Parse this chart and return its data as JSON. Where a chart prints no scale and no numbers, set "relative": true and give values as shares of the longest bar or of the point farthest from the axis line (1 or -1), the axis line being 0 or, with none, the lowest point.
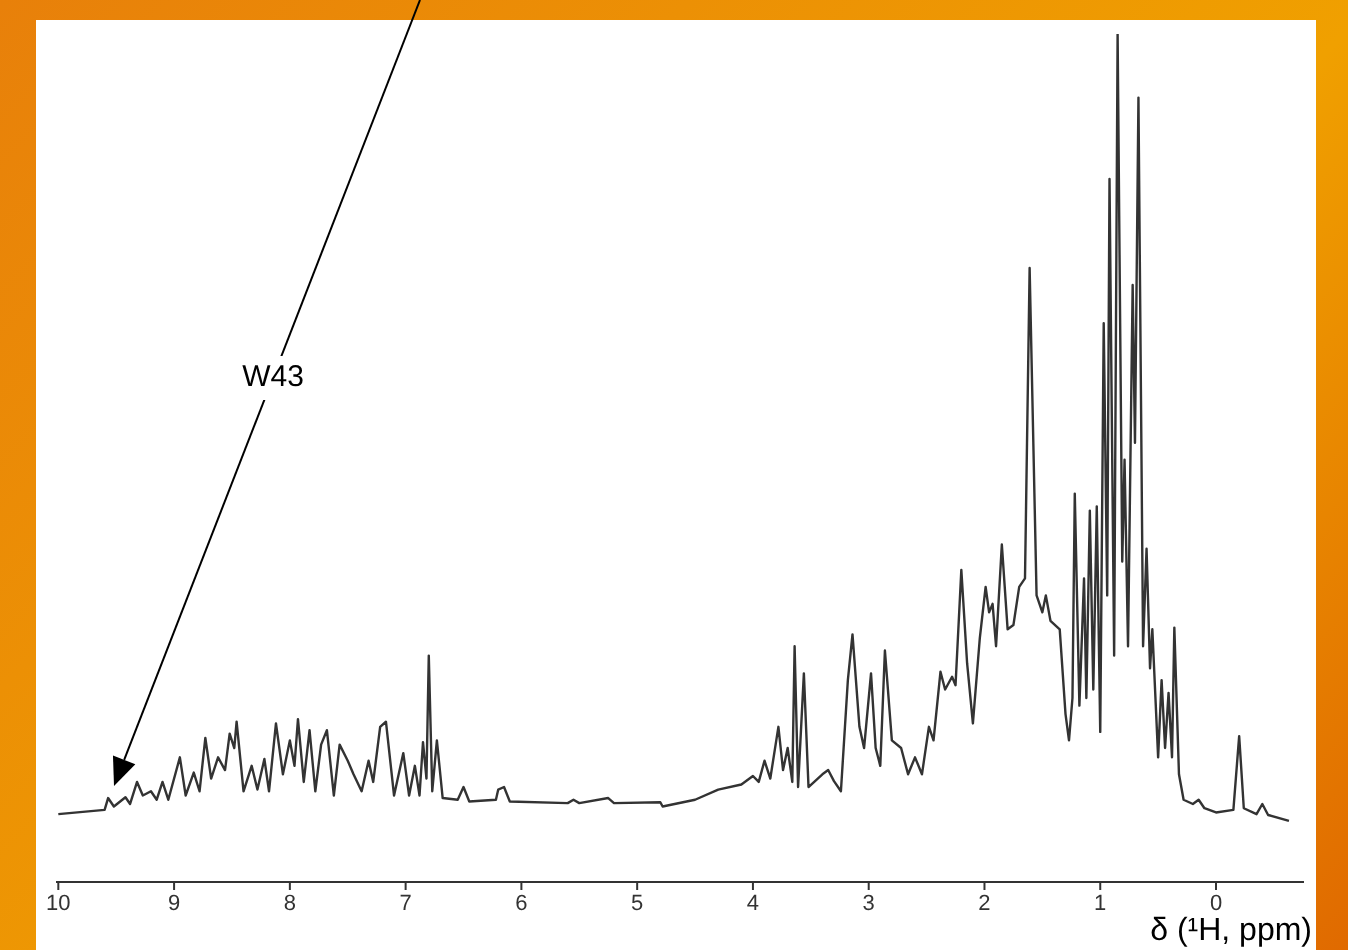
{
  "chart_data": {
    "type": "line",
    "relative": true,
    "xlabel": "δ (¹H, ppm)",
    "xlim": [
      10.02,
      -0.76
    ],
    "xticks": [
      10,
      9,
      8,
      7,
      6,
      5,
      4,
      3,
      2,
      1,
      0
    ],
    "marker": "none",
    "line_style": "solid",
    "annotations": [
      "W43"
    ],
    "x": [
      10.0,
      9.6,
      9.57,
      9.52,
      9.42,
      9.38,
      9.32,
      9.27,
      9.2,
      9.15,
      9.1,
      9.05,
      8.95,
      8.9,
      8.83,
      8.78,
      8.73,
      8.68,
      8.62,
      8.56,
      8.52,
      8.48,
      8.46,
      8.4,
      8.33,
      8.28,
      8.22,
      8.18,
      8.12,
      8.06,
      8.0,
      7.96,
      7.93,
      7.88,
      7.83,
      7.78,
      7.73,
      7.68,
      7.62,
      7.57,
      7.5,
      7.45,
      7.38,
      7.32,
      7.28,
      7.22,
      7.17,
      7.1,
      7.02,
      6.97,
      6.92,
      6.88,
      6.85,
      6.82,
      6.8,
      6.77,
      6.73,
      6.68,
      6.55,
      6.5,
      6.45,
      6.22,
      6.2,
      6.15,
      6.1,
      5.6,
      5.55,
      5.5,
      5.25,
      5.2,
      4.8,
      4.78,
      4.5,
      4.3,
      4.1,
      4.0,
      3.95,
      3.9,
      3.85,
      3.78,
      3.74,
      3.7,
      3.66,
      3.64,
      3.61,
      3.56,
      3.52,
      3.4,
      3.35,
      3.3,
      3.24,
      3.18,
      3.14,
      3.08,
      3.04,
      2.98,
      2.94,
      2.9,
      2.86,
      2.8,
      2.72,
      2.66,
      2.6,
      2.54,
      2.48,
      2.44,
      2.38,
      2.34,
      2.28,
      2.25,
      2.2,
      2.15,
      2.1,
      2.04,
      1.99,
      1.96,
      1.93,
      1.9,
      1.85,
      1.8,
      1.75,
      1.7,
      1.65,
      1.61,
      1.55,
      1.5,
      1.47,
      1.43,
      1.35,
      1.3,
      1.27,
      1.24,
      1.22,
      1.18,
      1.14,
      1.12,
      1.09,
      1.06,
      1.03,
      1.0,
      0.97,
      0.94,
      0.92,
      0.88,
      0.85,
      0.81,
      0.79,
      0.76,
      0.72,
      0.7,
      0.67,
      0.63,
      0.6,
      0.57,
      0.55,
      0.5,
      0.47,
      0.44,
      0.41,
      0.38,
      0.36,
      0.32,
      0.28,
      0.2,
      0.15,
      0.1,
      0.0,
      -0.15,
      -0.2,
      -0.24,
      -0.35,
      -0.4,
      -0.45,
      -0.63
    ],
    "series": [
      {
        "color": "#333333",
        "values": [
          0.08,
          0.085,
          0.099,
          0.089,
          0.1,
          0.092,
          0.118,
          0.102,
          0.107,
          0.097,
          0.118,
          0.097,
          0.147,
          0.102,
          0.129,
          0.107,
          0.17,
          0.122,
          0.147,
          0.132,
          0.175,
          0.158,
          0.189,
          0.107,
          0.137,
          0.109,
          0.145,
          0.107,
          0.187,
          0.127,
          0.167,
          0.137,
          0.192,
          0.118,
          0.179,
          0.107,
          0.162,
          0.179,
          0.102,
          0.162,
          0.143,
          0.127,
          0.107,
          0.143,
          0.118,
          0.183,
          0.189,
          0.102,
          0.152,
          0.102,
          0.137,
          0.102,
          0.165,
          0.122,
          0.267,
          0.107,
          0.167,
          0.099,
          0.097,
          0.112,
          0.095,
          0.097,
          0.109,
          0.112,
          0.095,
          0.093,
          0.097,
          0.093,
          0.099,
          0.093,
          0.094,
          0.089,
          0.097,
          0.109,
          0.115,
          0.125,
          0.118,
          0.143,
          0.122,
          0.183,
          0.132,
          0.158,
          0.118,
          0.278,
          0.112,
          0.246,
          0.112,
          0.127,
          0.132,
          0.119,
          0.107,
          0.238,
          0.292,
          0.183,
          0.158,
          0.246,
          0.158,
          0.137,
          0.273,
          0.167,
          0.158,
          0.127,
          0.147,
          0.127,
          0.183,
          0.167,
          0.248,
          0.227,
          0.242,
          0.232,
          0.368,
          0.258,
          0.187,
          0.288,
          0.348,
          0.318,
          0.328,
          0.278,
          0.398,
          0.298,
          0.303,
          0.348,
          0.358,
          0.724,
          0.338,
          0.318,
          0.338,
          0.308,
          0.298,
          0.198,
          0.167,
          0.217,
          0.458,
          0.208,
          0.358,
          0.217,
          0.438,
          0.227,
          0.443,
          0.177,
          0.659,
          0.338,
          0.829,
          0.267,
          1,
          0.378,
          0.498,
          0.278,
          0.704,
          0.518,
          0.925,
          0.278,
          0.393,
          0.252,
          0.298,
          0.147,
          0.238,
          0.158,
          0.223,
          0.147,
          0.3,
          0.127,
          0.097,
          0.092,
          0.097,
          0.087,
          0.082,
          0.085,
          0.172,
          0.087,
          0.08,
          0.092,
          0.079,
          0.072
        ]
      }
    ]
  }
}
